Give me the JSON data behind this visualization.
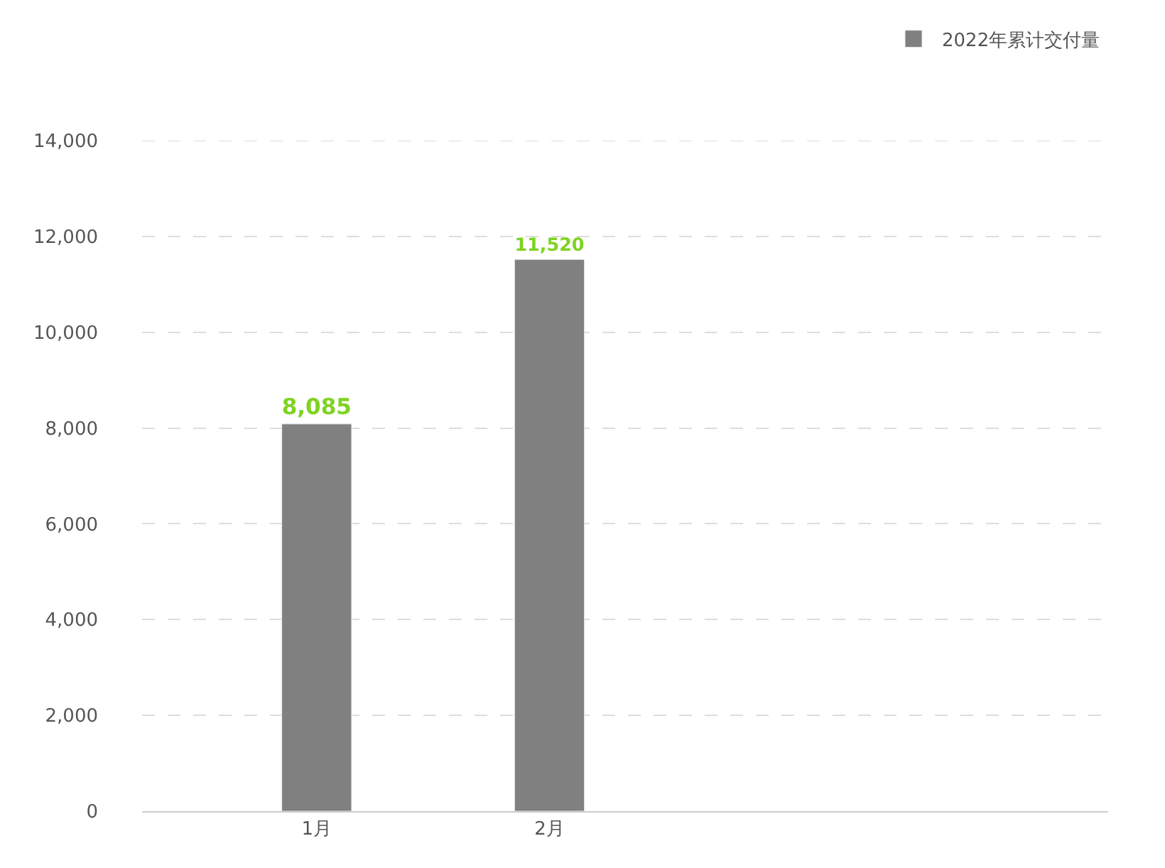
{
  "chart_data": {
    "type": "bar",
    "categories": [
      "1月",
      "2月",
      null,
      null
    ],
    "series": [
      {
        "name": "2022年累计交付量",
        "color": "#808080",
        "values": [
          8085,
          11520,
          null,
          null
        ],
        "value_labels": [
          "8,085",
          "11,520",
          null,
          null
        ]
      }
    ],
    "ylim": [
      0,
      14000
    ],
    "yticks": [
      0,
      {
        "value": 2000,
        "label": "2,000"
      },
      {
        "value": 4000,
        "label": "4,000"
      },
      {
        "value": 6000,
        "label": "6,000"
      },
      {
        "value": 8000,
        "label": "8,000"
      },
      {
        "value": 10000,
        "label": "10,000"
      },
      {
        "value": 12000,
        "label": "12,000"
      },
      {
        "value": 14000,
        "label": "14,000"
      }
    ],
    "grid": "y",
    "legend": "top right"
  }
}
